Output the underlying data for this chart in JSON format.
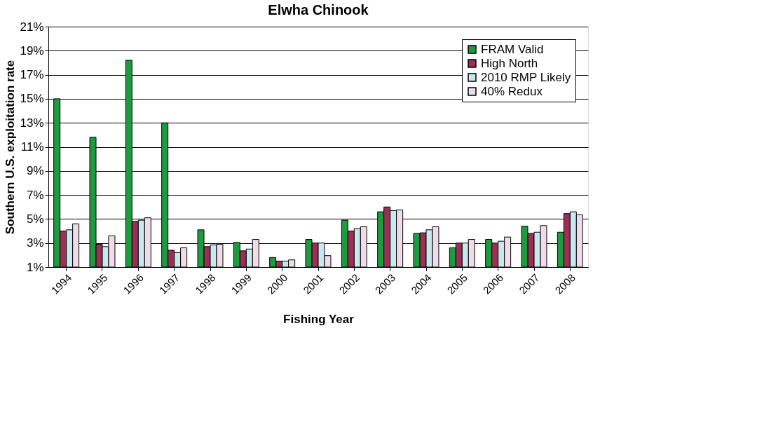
{
  "chart_data": {
    "type": "bar",
    "title": "Elwha Chinook",
    "xlabel": "Fishing Year",
    "ylabel": "Southern U.S. exploitation rate",
    "categories": [
      "1994",
      "1995",
      "1996",
      "1997",
      "1998",
      "1999",
      "2000",
      "2001",
      "2002",
      "2003",
      "2004",
      "2005",
      "2006",
      "2007",
      "2008"
    ],
    "series": [
      {
        "name": "FRAM Valid",
        "color": "#1e9a40",
        "values": [
          15.0,
          11.8,
          18.2,
          13.0,
          4.1,
          3.05,
          1.8,
          3.3,
          4.9,
          5.6,
          3.8,
          2.6,
          3.3,
          4.4,
          3.9
        ]
      },
      {
        "name": "High North",
        "color": "#9b2f55",
        "values": [
          4.0,
          2.9,
          4.8,
          2.4,
          2.7,
          2.35,
          1.5,
          3.0,
          4.0,
          6.0,
          3.85,
          3.0,
          3.0,
          3.8,
          5.45
        ]
      },
      {
        "name": "2010 RMP Likely",
        "color": "#c8e8ee",
        "values": [
          4.1,
          2.7,
          4.9,
          2.2,
          2.85,
          2.5,
          1.5,
          3.0,
          4.2,
          5.7,
          4.1,
          3.0,
          3.15,
          3.9,
          5.6
        ]
      },
      {
        "name": "40% Redux",
        "color": "#f0dce8",
        "values": [
          4.6,
          3.6,
          5.1,
          2.6,
          2.9,
          3.3,
          1.6,
          1.95,
          4.35,
          5.75,
          4.35,
          3.3,
          3.5,
          4.45,
          5.35
        ]
      }
    ],
    "ylim": [
      1,
      21
    ],
    "yticks": [
      {
        "value": 1,
        "label": "1%"
      },
      {
        "value": 3,
        "label": "3%"
      },
      {
        "value": 5,
        "label": "5%"
      },
      {
        "value": 7,
        "label": "7%"
      },
      {
        "value": 9,
        "label": "9%"
      },
      {
        "value": 11,
        "label": "11%"
      },
      {
        "value": 13,
        "label": "13%"
      },
      {
        "value": 15,
        "label": "15%"
      },
      {
        "value": 17,
        "label": "17%"
      },
      {
        "value": 19,
        "label": "19%"
      },
      {
        "value": 21,
        "label": "21%"
      }
    ],
    "grid": "y",
    "legend": "top right"
  }
}
